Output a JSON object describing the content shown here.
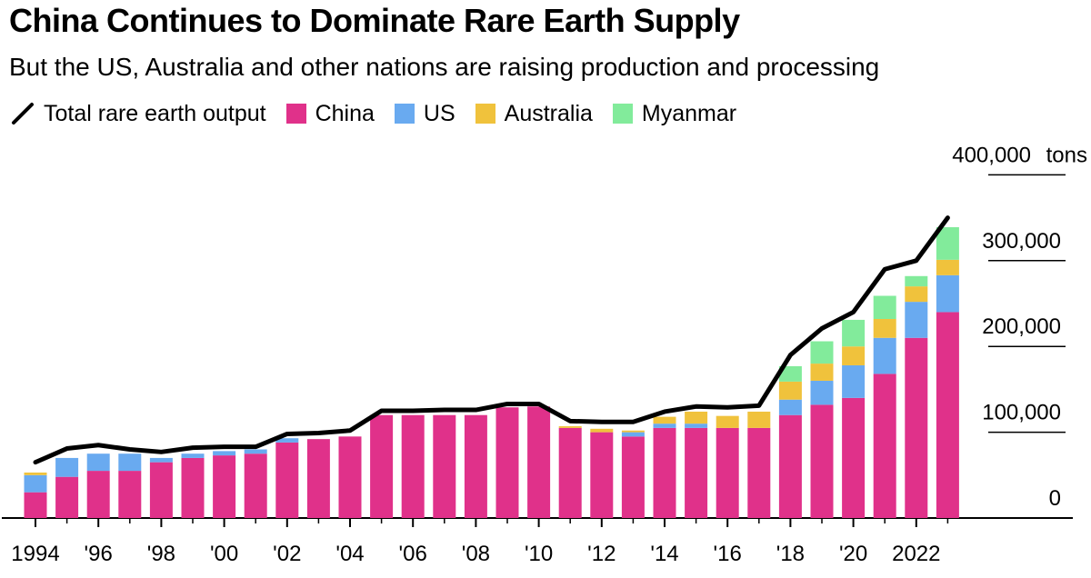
{
  "title": "China Continues to Dominate Rare Earth Supply",
  "subtitle": "But the US, Australia and other nations are raising production and processing",
  "legend": {
    "total": "Total rare earth output",
    "china": "China",
    "us": "US",
    "australia": "Australia",
    "myanmar": "Myanmar"
  },
  "colors": {
    "china": "#e0318a",
    "us": "#69aaf0",
    "australia": "#f0c23c",
    "myanmar": "#82eb9b",
    "total": "#000000"
  },
  "chart_data": {
    "type": "bar",
    "stacked": true,
    "years": [
      1994,
      1995,
      1996,
      1997,
      1998,
      1999,
      2000,
      2001,
      2002,
      2003,
      2004,
      2005,
      2006,
      2007,
      2008,
      2009,
      2010,
      2011,
      2012,
      2013,
      2014,
      2015,
      2016,
      2017,
      2018,
      2019,
      2020,
      2021,
      2022,
      2023
    ],
    "series": [
      {
        "name": "China",
        "key": "china",
        "values": [
          30000,
          48000,
          55000,
          55000,
          65000,
          70000,
          73000,
          75000,
          88000,
          92000,
          95000,
          120000,
          120000,
          120000,
          120000,
          129000,
          130000,
          105000,
          100000,
          95000,
          105000,
          105000,
          105000,
          105000,
          120000,
          132000,
          140000,
          168000,
          210000,
          240000
        ]
      },
      {
        "name": "US",
        "key": "us",
        "values": [
          20000,
          22000,
          20000,
          20000,
          5000,
          5000,
          5000,
          5000,
          5000,
          0,
          0,
          0,
          0,
          0,
          0,
          0,
          0,
          0,
          0,
          5000,
          5000,
          5000,
          0,
          0,
          18000,
          28000,
          38000,
          42000,
          42000,
          43000
        ]
      },
      {
        "name": "Australia",
        "key": "australia",
        "values": [
          3000,
          0,
          0,
          0,
          0,
          0,
          0,
          0,
          0,
          0,
          0,
          0,
          0,
          0,
          0,
          0,
          0,
          2000,
          4000,
          2000,
          8000,
          14000,
          14000,
          19000,
          21000,
          20000,
          22000,
          22000,
          18000,
          18000
        ]
      },
      {
        "name": "Myanmar",
        "key": "myanmar",
        "values": [
          0,
          0,
          0,
          0,
          0,
          0,
          0,
          0,
          0,
          0,
          0,
          0,
          0,
          0,
          0,
          0,
          0,
          0,
          0,
          0,
          0,
          0,
          0,
          0,
          18000,
          26000,
          31000,
          27000,
          12000,
          38000
        ]
      }
    ],
    "total": [
      65000,
      81000,
      85000,
      80000,
      77000,
      82000,
      83000,
      83000,
      98000,
      99000,
      102000,
      125000,
      125000,
      126000,
      126000,
      133000,
      133000,
      113000,
      112000,
      112000,
      124000,
      130000,
      129000,
      131000,
      190000,
      221000,
      240000,
      290000,
      300000,
      350000
    ],
    "y_ticks": [
      0,
      100000,
      200000,
      300000,
      400000
    ],
    "y_tick_labels": [
      "0",
      "100,000",
      "200,000",
      "300,000",
      "400,000"
    ],
    "y_unit": "tons",
    "x_tick_years": [
      1994,
      1996,
      1998,
      2000,
      2002,
      2004,
      2006,
      2008,
      2010,
      2012,
      2014,
      2016,
      2018,
      2020,
      2022
    ],
    "x_tick_labels": [
      "1994",
      "'96",
      "'98",
      "'00",
      "'02",
      "'04",
      "'06",
      "'08",
      "'10",
      "'12",
      "'14",
      "'16",
      "'18",
      "'20",
      "2022"
    ],
    "ylim": [
      0,
      400000
    ],
    "grid": true,
    "legend_position": "top-left"
  }
}
